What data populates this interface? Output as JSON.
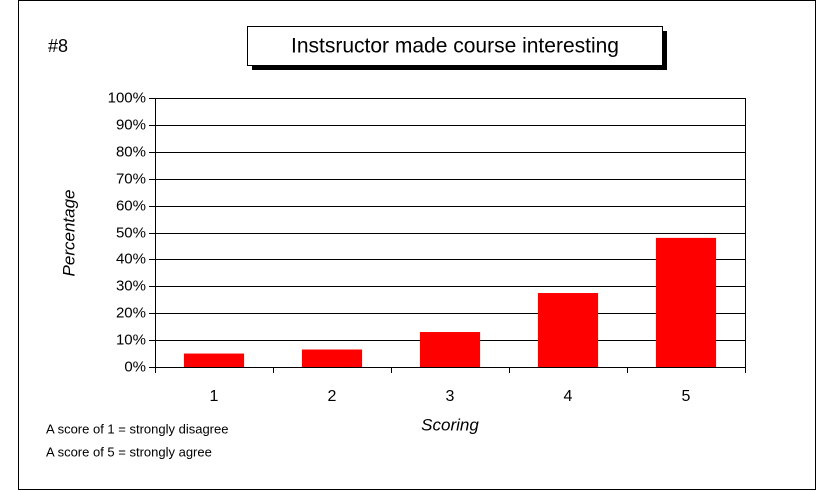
{
  "chart_data": {
    "type": "bar",
    "label": "#8",
    "title": "Instsructor made course interesting",
    "x_label": "Scoring",
    "y_label": "Percentage",
    "annotations": [
      "A score of 1 = strongly disagree",
      "A score of 5 = strongly agree"
    ],
    "categories": [
      "1",
      "2",
      "3",
      "4",
      "5"
    ],
    "values": [
      5,
      6.5,
      13,
      27.5,
      48
    ],
    "color": "#ff0000",
    "ylim": [
      0,
      100
    ],
    "yticks": [
      {
        "value": 0,
        "label": "0%"
      },
      {
        "value": 10,
        "label": "10%"
      },
      {
        "value": 20,
        "label": "20%"
      },
      {
        "value": 30,
        "label": "30%"
      },
      {
        "value": 40,
        "label": "40%"
      },
      {
        "value": 50,
        "label": "50%"
      },
      {
        "value": 60,
        "label": "60%"
      },
      {
        "value": 70,
        "label": "70%"
      },
      {
        "value": 80,
        "label": "80%"
      },
      {
        "value": 90,
        "label": "90%"
      },
      {
        "value": 100,
        "label": "100%"
      }
    ],
    "grid": true
  }
}
